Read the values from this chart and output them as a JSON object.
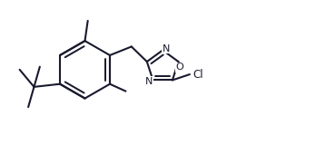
{
  "bg_color": "#ffffff",
  "line_color": "#1a1a2e",
  "line_width": 1.5,
  "figsize": [
    3.48,
    1.6
  ],
  "dpi": 100,
  "xlim": [
    0.0,
    2.175
  ],
  "ylim": [
    0.0,
    1.0
  ]
}
